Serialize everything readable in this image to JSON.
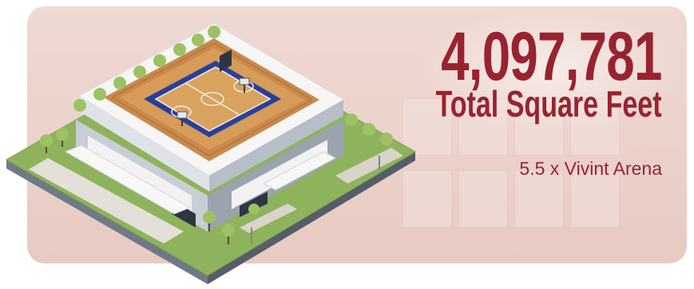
{
  "stat": {
    "value": "4,097,781",
    "label": "Total Square Feet",
    "comparison": "5.5 x Vivint Arena"
  },
  "colors": {
    "accent": "#98232f",
    "background": "#ecd3cc"
  },
  "illustration": {
    "icon": "isometric-arena-icon"
  }
}
